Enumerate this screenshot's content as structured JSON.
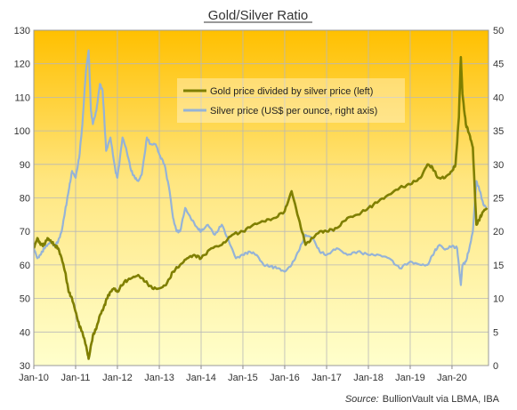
{
  "chart_data": {
    "type": "line",
    "title": "Gold/Silver Ratio",
    "source_label": "Source:",
    "source_text": "BullionVault via LBMA, IBA",
    "x_ticks": [
      "Jan-10",
      "Jan-11",
      "Jan-12",
      "Jan-13",
      "Jan-14",
      "Jan-15",
      "Jan-16",
      "Jan-17",
      "Jan-18",
      "Jan-19",
      "Jan-20"
    ],
    "xlim": [
      "2010-01-01",
      "2020-11-15"
    ],
    "y_left": {
      "lim": [
        30,
        130
      ],
      "ticks": [
        30,
        40,
        50,
        60,
        70,
        80,
        90,
        100,
        110,
        120,
        130
      ]
    },
    "y_right": {
      "lim": [
        0,
        50
      ],
      "ticks": [
        0,
        5,
        10,
        15,
        20,
        25,
        30,
        35,
        40,
        45,
        50
      ]
    },
    "grid": true,
    "legend_position": "top-right",
    "colors": {
      "ratio": "#7f7f00",
      "silver": "#95b3d7",
      "background_top": "#ffc000",
      "background_bottom": "#ffffcc"
    },
    "series": [
      {
        "name": "Gold price divided by silver price (left)",
        "axis": "left",
        "x": [
          "2010-01-01",
          "2010-02-01",
          "2010-03-01",
          "2010-04-01",
          "2010-05-01",
          "2010-06-01",
          "2010-07-01",
          "2010-08-01",
          "2010-09-01",
          "2010-10-01",
          "2010-11-01",
          "2010-12-01",
          "2011-01-01",
          "2011-02-01",
          "2011-03-01",
          "2011-04-01",
          "2011-04-25",
          "2011-06-01",
          "2011-07-01",
          "2011-08-01",
          "2011-09-01",
          "2011-10-01",
          "2011-11-01",
          "2011-12-01",
          "2012-01-01",
          "2012-03-01",
          "2012-05-01",
          "2012-07-01",
          "2012-09-01",
          "2012-11-01",
          "2013-01-01",
          "2013-03-01",
          "2013-05-01",
          "2013-07-01",
          "2013-09-01",
          "2013-11-01",
          "2014-01-01",
          "2014-04-01",
          "2014-07-01",
          "2014-10-01",
          "2015-01-01",
          "2015-04-01",
          "2015-07-01",
          "2015-10-01",
          "2016-01-01",
          "2016-03-01",
          "2016-05-01",
          "2016-07-01",
          "2016-09-01",
          "2016-11-01",
          "2017-01-01",
          "2017-04-01",
          "2017-07-01",
          "2017-10-01",
          "2018-01-01",
          "2018-04-01",
          "2018-07-01",
          "2018-10-01",
          "2019-01-01",
          "2019-04-01",
          "2019-06-01",
          "2019-07-15",
          "2019-09-01",
          "2019-11-01",
          "2020-01-01",
          "2020-02-01",
          "2020-03-01",
          "2020-03-18",
          "2020-04-01",
          "2020-05-01",
          "2020-06-01",
          "2020-07-01",
          "2020-08-01",
          "2020-09-01",
          "2020-10-01",
          "2020-11-01"
        ],
        "values": [
          65,
          68,
          66,
          66,
          68,
          67,
          66,
          65,
          62,
          58,
          52,
          50,
          46,
          42,
          40,
          36,
          32,
          39,
          41,
          45,
          47,
          50,
          52,
          53,
          52,
          55,
          56,
          57,
          55,
          53,
          53,
          54,
          58,
          60,
          62,
          63,
          62,
          65,
          66,
          69,
          70,
          72,
          73,
          74,
          76,
          82,
          74,
          66,
          68,
          70,
          70,
          71,
          74,
          75,
          77,
          79,
          81,
          83,
          84,
          86,
          90,
          89,
          86,
          86,
          88,
          90,
          104,
          122,
          111,
          102,
          99,
          95,
          72,
          74,
          76,
          77
        ]
      },
      {
        "name": "Silver price (US$ per ounce, right axis)",
        "axis": "right",
        "x": [
          "2010-01-01",
          "2010-02-01",
          "2010-03-01",
          "2010-04-01",
          "2010-05-01",
          "2010-06-01",
          "2010-07-01",
          "2010-08-01",
          "2010-09-01",
          "2010-10-01",
          "2010-11-01",
          "2010-12-01",
          "2011-01-01",
          "2011-02-01",
          "2011-03-01",
          "2011-04-01",
          "2011-04-25",
          "2011-05-15",
          "2011-06-01",
          "2011-07-01",
          "2011-08-01",
          "2011-08-25",
          "2011-09-25",
          "2011-11-01",
          "2011-12-15",
          "2012-01-01",
          "2012-02-15",
          "2012-03-15",
          "2012-05-01",
          "2012-06-01",
          "2012-07-01",
          "2012-08-01",
          "2012-09-15",
          "2012-10-15",
          "2012-12-01",
          "2013-01-01",
          "2013-02-15",
          "2013-04-01",
          "2013-05-01",
          "2013-06-01",
          "2013-07-01",
          "2013-08-15",
          "2013-10-01",
          "2013-12-01",
          "2014-01-01",
          "2014-03-01",
          "2014-05-01",
          "2014-07-01",
          "2014-09-01",
          "2014-11-01",
          "2015-01-01",
          "2015-03-01",
          "2015-05-01",
          "2015-07-01",
          "2015-09-01",
          "2015-11-01",
          "2016-01-01",
          "2016-03-01",
          "2016-05-01",
          "2016-07-01",
          "2016-09-01",
          "2016-11-01",
          "2017-01-01",
          "2017-04-01",
          "2017-07-01",
          "2017-10-01",
          "2018-01-01",
          "2018-04-01",
          "2018-07-01",
          "2018-10-01",
          "2019-01-01",
          "2019-04-01",
          "2019-06-01",
          "2019-08-01",
          "2019-09-15",
          "2019-11-01",
          "2020-01-01",
          "2020-02-15",
          "2020-03-18",
          "2020-04-01",
          "2020-05-01",
          "2020-06-01",
          "2020-07-01",
          "2020-08-01",
          "2020-09-01",
          "2020-10-01",
          "2020-11-01"
        ],
        "values": [
          17.5,
          16,
          16.5,
          17.5,
          18,
          18.5,
          17.8,
          18.5,
          20,
          23,
          26,
          29,
          28,
          31,
          36,
          44,
          47,
          38,
          36,
          38,
          42,
          41,
          32,
          34,
          29,
          28,
          34,
          32.5,
          29,
          28,
          27.5,
          28.5,
          34,
          33,
          33,
          31.5,
          30,
          26,
          22,
          20,
          20,
          23.5,
          22,
          20.5,
          20,
          21,
          19.5,
          21,
          18.5,
          16,
          16.5,
          17,
          16.5,
          15,
          14.8,
          14.5,
          14,
          15,
          17,
          19.5,
          19,
          17,
          16.5,
          17.5,
          16.5,
          17,
          16.5,
          16.5,
          16,
          14.5,
          15.5,
          15,
          15,
          17,
          18,
          17.3,
          17.8,
          17.5,
          12,
          15,
          15.5,
          17.5,
          20,
          27.5,
          26,
          24,
          23.5
        ]
      }
    ]
  }
}
